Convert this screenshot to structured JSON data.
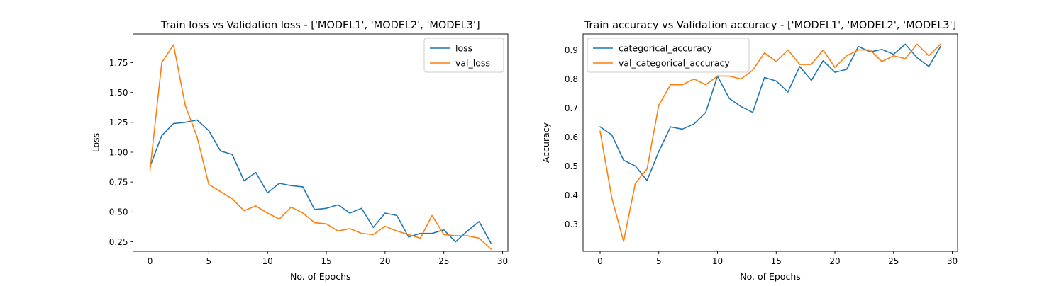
{
  "colors": {
    "series1": "#1f77b4",
    "series2": "#ff7f0e"
  },
  "chart_data": [
    {
      "type": "line",
      "title": "Train loss vs Validation loss - ['MODEL1', 'MODEL2', 'MODEL3']",
      "xlabel": "No. of Epochs",
      "ylabel": "Loss",
      "xlim": [
        -1.45,
        30.45
      ],
      "ylim": [
        0.17,
        1.99
      ],
      "xticks": [
        0,
        5,
        10,
        15,
        20,
        25,
        30
      ],
      "xtick_labels": [
        "0",
        "5",
        "10",
        "15",
        "20",
        "25",
        "30"
      ],
      "yticks": [
        0.25,
        0.5,
        0.75,
        1.0,
        1.25,
        1.5,
        1.75
      ],
      "ytick_labels": [
        "0.25",
        "0.50",
        "0.75",
        "1.00",
        "1.25",
        "1.50",
        "1.75"
      ],
      "grid": false,
      "legend_position": "top-right",
      "x": [
        0,
        1,
        2,
        3,
        4,
        5,
        6,
        7,
        8,
        9,
        10,
        11,
        12,
        13,
        14,
        15,
        16,
        17,
        18,
        19,
        20,
        21,
        22,
        23,
        24,
        25,
        26,
        27,
        28,
        29
      ],
      "series": [
        {
          "name": "loss",
          "values": [
            0.88,
            1.14,
            1.24,
            1.25,
            1.27,
            1.18,
            1.01,
            0.98,
            0.76,
            0.83,
            0.66,
            0.74,
            0.72,
            0.71,
            0.52,
            0.53,
            0.56,
            0.49,
            0.53,
            0.37,
            0.49,
            0.47,
            0.29,
            0.32,
            0.32,
            0.35,
            0.25,
            0.34,
            0.42,
            0.24
          ]
        },
        {
          "name": "val_loss",
          "values": [
            0.85,
            1.75,
            1.9,
            1.39,
            1.13,
            0.73,
            0.67,
            0.61,
            0.51,
            0.55,
            0.49,
            0.44,
            0.54,
            0.49,
            0.41,
            0.4,
            0.34,
            0.36,
            0.32,
            0.31,
            0.38,
            0.34,
            0.31,
            0.28,
            0.47,
            0.31,
            0.3,
            0.3,
            0.28,
            0.19
          ]
        }
      ]
    },
    {
      "type": "line",
      "title": "Train accuracy vs Validation accuracy - ['MODEL1', 'MODEL2', 'MODEL3']",
      "xlabel": "No. of Epochs",
      "ylabel": "Accuracy",
      "xlim": [
        -1.45,
        30.45
      ],
      "ylim": [
        0.206,
        0.955
      ],
      "xticks": [
        0,
        5,
        10,
        15,
        20,
        25,
        30
      ],
      "xtick_labels": [
        "0",
        "5",
        "10",
        "15",
        "20",
        "25",
        "30"
      ],
      "yticks": [
        0.3,
        0.4,
        0.5,
        0.6,
        0.7,
        0.8,
        0.9
      ],
      "ytick_labels": [
        "0.3",
        "0.4",
        "0.5",
        "0.6",
        "0.7",
        "0.8",
        "0.9"
      ],
      "grid": false,
      "legend_position": "top-left",
      "x": [
        0,
        1,
        2,
        3,
        4,
        5,
        6,
        7,
        8,
        9,
        10,
        11,
        12,
        13,
        14,
        15,
        16,
        17,
        18,
        19,
        20,
        21,
        22,
        23,
        24,
        25,
        26,
        27,
        28,
        29
      ],
      "series": [
        {
          "name": "categorical_accuracy",
          "values": [
            0.635,
            0.607,
            0.52,
            0.5,
            0.45,
            0.55,
            0.635,
            0.627,
            0.645,
            0.685,
            0.81,
            0.733,
            0.705,
            0.685,
            0.805,
            0.793,
            0.755,
            0.843,
            0.795,
            0.863,
            0.823,
            0.833,
            0.912,
            0.893,
            0.902,
            0.885,
            0.92,
            0.873,
            0.843,
            0.912
          ]
        },
        {
          "name": "val_categorical_accuracy",
          "values": [
            0.62,
            0.39,
            0.24,
            0.44,
            0.49,
            0.71,
            0.78,
            0.78,
            0.8,
            0.78,
            0.81,
            0.81,
            0.8,
            0.83,
            0.89,
            0.86,
            0.9,
            0.85,
            0.85,
            0.9,
            0.84,
            0.88,
            0.9,
            0.9,
            0.86,
            0.88,
            0.87,
            0.92,
            0.88,
            0.92
          ]
        }
      ]
    }
  ]
}
